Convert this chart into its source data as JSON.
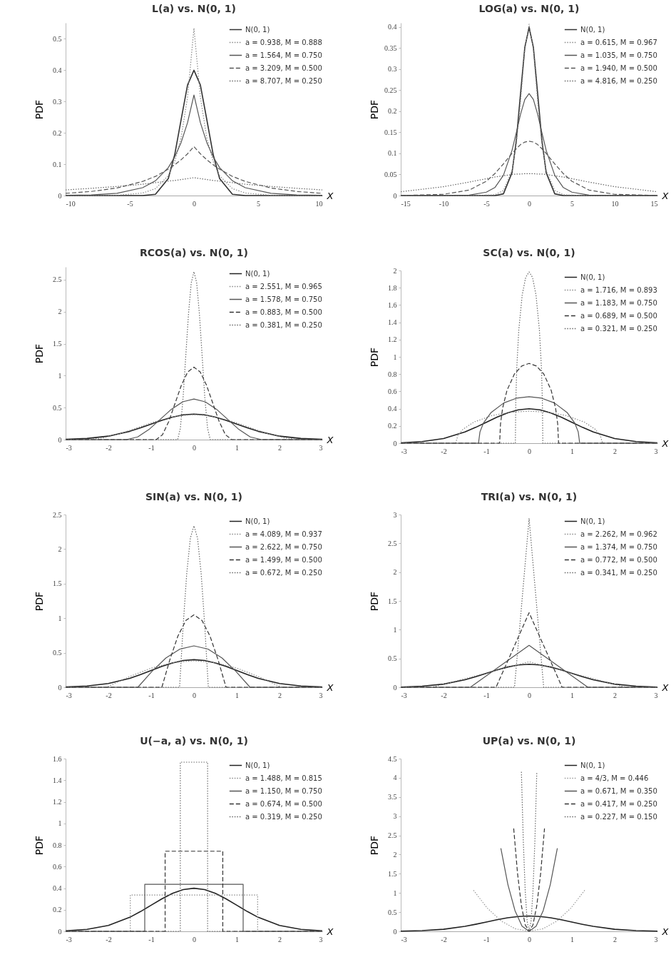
{
  "chart_data": [
    {
      "type": "line",
      "title": "L(a) vs. N(0, 1)",
      "xlabel": "X",
      "ylabel": "PDF",
      "xlim": [
        -10,
        10
      ],
      "ylim": [
        0,
        0.55
      ],
      "xticks": [
        -10,
        -5,
        0,
        5,
        10
      ],
      "yticks": [
        0,
        0.1,
        0.2,
        0.3,
        0.4,
        0.5
      ],
      "legend": "top right",
      "series": [
        {
          "name": "N(0, 1)",
          "color": "#333333",
          "line_style": "solid",
          "x": [
            -10,
            -8,
            -6,
            -4,
            -3,
            -2,
            -1.5,
            -1,
            -0.5,
            0,
            0.5,
            1,
            1.5,
            2,
            3,
            4,
            6,
            8,
            10
          ],
          "values": [
            0,
            0,
            0,
            0,
            0.004,
            0.054,
            0.13,
            0.242,
            0.352,
            0.399,
            0.352,
            0.242,
            0.13,
            0.054,
            0.004,
            0,
            0,
            0,
            0
          ]
        },
        {
          "name": "a = 0.938, M = 0.888",
          "color": "#888888",
          "line_style": "dotted",
          "x": [
            -10,
            -8,
            -6,
            -4,
            -3,
            -2,
            -1.5,
            -1,
            -0.5,
            0,
            0.5,
            1,
            1.5,
            2,
            3,
            4,
            6,
            8,
            10
          ],
          "values": [
            0,
            0,
            0.001,
            0.008,
            0.022,
            0.063,
            0.108,
            0.184,
            0.313,
            0.533,
            0.313,
            0.184,
            0.108,
            0.063,
            0.022,
            0.008,
            0.001,
            0,
            0
          ]
        },
        {
          "name": "a = 1.564, M = 0.750",
          "color": "#555555",
          "line_style": "solid",
          "x": [
            -10,
            -8,
            -6,
            -4,
            -3,
            -2,
            -1.5,
            -1,
            -0.5,
            0,
            0.5,
            1,
            1.5,
            2,
            3,
            4,
            6,
            8,
            10
          ],
          "values": [
            0.001,
            0.002,
            0.007,
            0.025,
            0.047,
            0.089,
            0.123,
            0.169,
            0.232,
            0.32,
            0.232,
            0.169,
            0.123,
            0.089,
            0.047,
            0.025,
            0.007,
            0.002,
            0.001
          ]
        },
        {
          "name": "a = 3.209, M = 0.500",
          "color": "#555555",
          "line_style": "dashed",
          "x": [
            -10,
            -8,
            -6,
            -4,
            -3,
            -2,
            -1.5,
            -1,
            -0.5,
            0,
            0.5,
            1,
            1.5,
            2,
            3,
            4,
            6,
            8,
            10
          ],
          "values": [
            0.007,
            0.013,
            0.024,
            0.045,
            0.061,
            0.084,
            0.098,
            0.114,
            0.133,
            0.156,
            0.133,
            0.114,
            0.098,
            0.084,
            0.061,
            0.045,
            0.024,
            0.013,
            0.007
          ]
        },
        {
          "name": "a = 8.707, M = 0.250",
          "color": "#666666",
          "line_style": "dotted",
          "x": [
            -10,
            -8,
            -6,
            -4,
            -3,
            -2,
            -1.5,
            -1,
            -0.5,
            0,
            0.5,
            1,
            1.5,
            2,
            3,
            4,
            6,
            8,
            10
          ],
          "values": [
            0.018,
            0.023,
            0.029,
            0.036,
            0.041,
            0.046,
            0.048,
            0.051,
            0.054,
            0.057,
            0.054,
            0.051,
            0.048,
            0.046,
            0.041,
            0.036,
            0.029,
            0.023,
            0.018
          ]
        }
      ]
    },
    {
      "type": "line",
      "title": "LOG(a) vs. N(0, 1)",
      "xlabel": "X",
      "ylabel": "PDF",
      "xlim": [
        -15,
        15
      ],
      "ylim": [
        0,
        0.41
      ],
      "xticks": [
        -15,
        -10,
        -5,
        0,
        5,
        10,
        15
      ],
      "yticks": [
        0,
        0.05,
        0.1,
        0.15,
        0.2,
        0.25,
        0.3,
        0.35,
        0.4
      ],
      "legend": "top right",
      "series": [
        {
          "name": "N(0, 1)",
          "color": "#333333",
          "line_style": "solid",
          "x": [
            -15,
            -10,
            -7,
            -5,
            -4,
            -3,
            -2,
            -1.5,
            -1,
            -0.5,
            0,
            0.5,
            1,
            1.5,
            2,
            3,
            4,
            5,
            7,
            10,
            15
          ],
          "values": [
            0,
            0,
            0,
            0,
            0,
            0.004,
            0.054,
            0.13,
            0.242,
            0.352,
            0.399,
            0.352,
            0.242,
            0.13,
            0.054,
            0.004,
            0,
            0,
            0,
            0,
            0
          ]
        },
        {
          "name": "a = 0.615, M = 0.967",
          "color": "#888888",
          "line_style": "dotted",
          "x": [
            -15,
            -10,
            -7,
            -5,
            -4,
            -3,
            -2,
            -1.5,
            -1,
            -0.5,
            0,
            0.5,
            1,
            1.5,
            2,
            3,
            4,
            5,
            7,
            10,
            15
          ],
          "values": [
            0,
            0,
            0,
            0.001,
            0.002,
            0.012,
            0.059,
            0.12,
            0.223,
            0.346,
            0.407,
            0.346,
            0.223,
            0.12,
            0.059,
            0.012,
            0.002,
            0.001,
            0,
            0,
            0
          ]
        },
        {
          "name": "a = 1.035, M = 0.750",
          "color": "#555555",
          "line_style": "solid",
          "x": [
            -15,
            -10,
            -7,
            -5,
            -4,
            -3,
            -2,
            -1.5,
            -1,
            -0.5,
            0,
            0.5,
            1,
            1.5,
            2,
            3,
            4,
            5,
            7,
            10,
            15
          ],
          "values": [
            0,
            0,
            0.001,
            0.008,
            0.019,
            0.048,
            0.107,
            0.149,
            0.193,
            0.228,
            0.242,
            0.228,
            0.193,
            0.149,
            0.107,
            0.048,
            0.019,
            0.008,
            0.001,
            0,
            0
          ]
        },
        {
          "name": "a = 1.940, M = 0.500",
          "color": "#555555",
          "line_style": "dashed",
          "x": [
            -15,
            -10,
            -7,
            -5,
            -4,
            -3,
            -2,
            -1.5,
            -1,
            -0.5,
            0,
            0.5,
            1,
            1.5,
            2,
            3,
            4,
            5,
            7,
            10,
            15
          ],
          "values": [
            0,
            0.003,
            0.013,
            0.034,
            0.052,
            0.075,
            0.1,
            0.111,
            0.121,
            0.127,
            0.129,
            0.127,
            0.121,
            0.111,
            0.1,
            0.075,
            0.052,
            0.034,
            0.013,
            0.003,
            0
          ]
        },
        {
          "name": "a = 4.816, M = 0.250",
          "color": "#666666",
          "line_style": "dotted",
          "x": [
            -15,
            -10,
            -7,
            -5,
            -4,
            -3,
            -2,
            -1.5,
            -1,
            -0.5,
            0,
            0.5,
            1,
            1.5,
            2,
            3,
            4,
            5,
            7,
            10,
            15
          ],
          "values": [
            0.009,
            0.021,
            0.032,
            0.04,
            0.044,
            0.047,
            0.05,
            0.051,
            0.051,
            0.052,
            0.052,
            0.052,
            0.051,
            0.051,
            0.05,
            0.047,
            0.044,
            0.04,
            0.032,
            0.021,
            0.009
          ]
        }
      ]
    },
    {
      "type": "line",
      "title": "RCOS(a) vs. N(0, 1)",
      "xlabel": "X",
      "ylabel": "PDF",
      "xlim": [
        -3,
        3
      ],
      "ylim": [
        0,
        2.7
      ],
      "xticks": [
        -3,
        -2,
        -1,
        0,
        1,
        2,
        3
      ],
      "yticks": [
        0,
        0.5,
        1,
        1.5,
        2,
        2.5
      ],
      "legend": "top right",
      "series": [
        {
          "name": "N(0, 1)",
          "color": "#222222",
          "line_style": "solid",
          "x": [
            -3,
            -2.5,
            -2,
            -1.5,
            -1.25,
            -1,
            -0.75,
            -0.5,
            -0.25,
            0,
            0.25,
            0.5,
            0.75,
            1,
            1.25,
            1.5,
            2,
            2.5,
            3
          ],
          "values": [
            0.004,
            0.018,
            0.054,
            0.13,
            0.183,
            0.242,
            0.301,
            0.352,
            0.387,
            0.399,
            0.387,
            0.352,
            0.301,
            0.242,
            0.183,
            0.13,
            0.054,
            0.018,
            0.004
          ]
        },
        {
          "name": "a = 2.551, M = 0.965",
          "color": "#888888",
          "line_style": "dotted",
          "x": [
            -3,
            -2.551,
            -2.126,
            -1.701,
            -1.276,
            -0.85,
            -0.425,
            0,
            0.425,
            0.85,
            1.276,
            1.701,
            2.126,
            2.551,
            3
          ],
          "values": [
            0,
            0,
            0.026,
            0.098,
            0.196,
            0.294,
            0.366,
            0.392,
            0.366,
            0.294,
            0.196,
            0.098,
            0.026,
            0,
            0
          ]
        },
        {
          "name": "a = 1.578, M = 0.750",
          "color": "#555555",
          "line_style": "solid",
          "x": [
            -3,
            -1.578,
            -1.315,
            -1.052,
            -0.789,
            -0.526,
            -0.263,
            0,
            0.263,
            0.526,
            0.789,
            1.052,
            1.315,
            1.578,
            3
          ],
          "values": [
            0,
            0,
            0.042,
            0.158,
            0.317,
            0.475,
            0.591,
            0.634,
            0.591,
            0.475,
            0.317,
            0.158,
            0.042,
            0,
            0
          ]
        },
        {
          "name": "a = 0.883, M = 0.500",
          "color": "#333333",
          "line_style": "dashed",
          "x": [
            -3,
            -0.883,
            -0.736,
            -0.589,
            -0.442,
            -0.294,
            -0.147,
            0,
            0.147,
            0.294,
            0.442,
            0.589,
            0.736,
            0.883,
            3
          ],
          "values": [
            0,
            0,
            0.076,
            0.283,
            0.566,
            0.85,
            1.057,
            1.133,
            1.057,
            0.85,
            0.566,
            0.283,
            0.076,
            0,
            0
          ]
        },
        {
          "name": "a = 0.381, M = 0.250",
          "color": "#666666",
          "line_style": "dotted",
          "x": [
            -3,
            -0.381,
            -0.318,
            -0.254,
            -0.191,
            -0.127,
            -0.064,
            0,
            0.064,
            0.127,
            0.191,
            0.254,
            0.318,
            0.381,
            3
          ],
          "values": [
            0,
            0,
            0.176,
            0.656,
            1.312,
            1.969,
            2.449,
            2.625,
            2.449,
            1.969,
            1.312,
            0.656,
            0.176,
            0,
            0
          ]
        }
      ]
    },
    {
      "type": "line",
      "title": "SC(a) vs. N(0, 1)",
      "xlabel": "X",
      "ylabel": "PDF",
      "xlim": [
        -3,
        3
      ],
      "ylim": [
        0,
        2
      ],
      "xticks": [
        -3,
        -2,
        -1,
        0,
        1,
        2,
        3
      ],
      "yticks": [
        0,
        0.2,
        0.4,
        0.6,
        0.8,
        1,
        1.2,
        1.4,
        1.6,
        1.8,
        2
      ],
      "legend": "top right",
      "series": [
        {
          "name": "N(0, 1)",
          "color": "#222222",
          "line_style": "solid",
          "x": [
            -3,
            -2.5,
            -2,
            -1.5,
            -1.25,
            -1,
            -0.75,
            -0.5,
            -0.25,
            0,
            0.25,
            0.5,
            0.75,
            1,
            1.25,
            1.5,
            2,
            2.5,
            3
          ],
          "values": [
            0.004,
            0.018,
            0.054,
            0.13,
            0.183,
            0.242,
            0.301,
            0.352,
            0.387,
            0.399,
            0.387,
            0.352,
            0.301,
            0.242,
            0.183,
            0.13,
            0.054,
            0.018,
            0.004
          ]
        },
        {
          "name": "a = 1.716, M = 0.893",
          "color": "#888888",
          "line_style": "dotted",
          "x": [
            -3,
            -1.716,
            -1.665,
            -1.544,
            -1.287,
            -0.858,
            -0.429,
            0,
            0.429,
            0.858,
            1.287,
            1.544,
            1.665,
            1.716,
            3
          ],
          "values": [
            0,
            0,
            0.09,
            0.162,
            0.245,
            0.321,
            0.359,
            0.371,
            0.359,
            0.321,
            0.245,
            0.162,
            0.09,
            0,
            0
          ]
        },
        {
          "name": "a = 1.183, M = 0.750",
          "color": "#555555",
          "line_style": "solid",
          "x": [
            -3,
            -1.183,
            -1.148,
            -1.065,
            -0.887,
            -0.592,
            -0.296,
            0,
            0.296,
            0.592,
            0.887,
            1.065,
            1.148,
            1.183,
            3
          ],
          "values": [
            0,
            0,
            0.131,
            0.235,
            0.356,
            0.466,
            0.521,
            0.538,
            0.521,
            0.466,
            0.356,
            0.235,
            0.131,
            0,
            0
          ]
        },
        {
          "name": "a = 0.689, M = 0.500",
          "color": "#333333",
          "line_style": "dashed",
          "x": [
            -3,
            -0.689,
            -0.668,
            -0.62,
            -0.517,
            -0.345,
            -0.172,
            0,
            0.172,
            0.345,
            0.517,
            0.62,
            0.668,
            0.689,
            3
          ],
          "values": [
            0,
            0,
            0.225,
            0.403,
            0.611,
            0.8,
            0.894,
            0.924,
            0.894,
            0.8,
            0.611,
            0.403,
            0.225,
            0,
            0
          ]
        },
        {
          "name": "a = 0.321, M = 0.250",
          "color": "#666666",
          "line_style": "dotted",
          "x": [
            -3,
            -0.321,
            -0.311,
            -0.289,
            -0.241,
            -0.161,
            -0.08,
            0,
            0.08,
            0.161,
            0.241,
            0.289,
            0.311,
            0.321,
            3
          ],
          "values": [
            0,
            0,
            0.482,
            0.865,
            1.311,
            1.717,
            1.92,
            1.983,
            1.92,
            1.717,
            1.311,
            0.865,
            0.482,
            0,
            0
          ]
        }
      ]
    },
    {
      "type": "line",
      "title": "SIN(a) vs. N(0, 1)",
      "xlabel": "X",
      "ylabel": "PDF",
      "xlim": [
        -3,
        3
      ],
      "ylim": [
        0,
        2.5
      ],
      "xticks": [
        -3,
        -2,
        -1,
        0,
        1,
        2,
        3
      ],
      "yticks": [
        0,
        0.5,
        1,
        1.5,
        2,
        2.5
      ],
      "legend": "top right",
      "series": [
        {
          "name": "N(0, 1)",
          "color": "#222222",
          "line_style": "solid",
          "x": [
            -3,
            -2.5,
            -2,
            -1.5,
            -1.25,
            -1,
            -0.75,
            -0.5,
            -0.25,
            0,
            0.25,
            0.5,
            0.75,
            1,
            1.25,
            1.5,
            2,
            2.5,
            3
          ],
          "values": [
            0.004,
            0.018,
            0.054,
            0.13,
            0.183,
            0.242,
            0.301,
            0.352,
            0.387,
            0.399,
            0.387,
            0.352,
            0.301,
            0.242,
            0.183,
            0.13,
            0.054,
            0.018,
            0.004
          ]
        },
        {
          "name": "a = 4.089, M = 0.937",
          "color": "#888888",
          "line_style": "dotted",
          "x": [
            -3,
            -2.045,
            -1.533,
            -1.022,
            -0.511,
            0,
            0.511,
            1.022,
            1.533,
            2.045,
            3
          ],
          "values": [
            0,
            0,
            0.147,
            0.272,
            0.355,
            0.384,
            0.355,
            0.272,
            0.147,
            0,
            0
          ]
        },
        {
          "name": "a = 2.622, M = 0.750",
          "color": "#555555",
          "line_style": "solid",
          "x": [
            -3,
            -1.311,
            -0.983,
            -0.656,
            -0.328,
            0,
            0.328,
            0.656,
            0.983,
            1.311,
            3
          ],
          "values": [
            0,
            0,
            0.229,
            0.424,
            0.553,
            0.599,
            0.553,
            0.424,
            0.229,
            0,
            0
          ]
        },
        {
          "name": "a = 1.499, M = 0.500",
          "color": "#333333",
          "line_style": "dashed",
          "x": [
            -3,
            -0.75,
            -0.562,
            -0.375,
            -0.187,
            0,
            0.187,
            0.375,
            0.562,
            0.75,
            3
          ],
          "values": [
            0,
            0,
            0.401,
            0.741,
            0.968,
            1.048,
            0.968,
            0.741,
            0.401,
            0,
            0
          ]
        },
        {
          "name": "a = 0.672, M = 0.250",
          "color": "#666666",
          "line_style": "dotted",
          "x": [
            -3,
            -0.336,
            -0.252,
            -0.168,
            -0.084,
            0,
            0.084,
            0.168,
            0.252,
            0.336,
            3
          ],
          "values": [
            0,
            0,
            0.895,
            1.652,
            2.159,
            2.337,
            2.159,
            1.652,
            0.895,
            0,
            0
          ]
        }
      ]
    },
    {
      "type": "line",
      "title": "TRI(a) vs. N(0, 1)",
      "xlabel": "X",
      "ylabel": "PDF",
      "xlim": [
        -3,
        3
      ],
      "ylim": [
        0,
        3
      ],
      "xticks": [
        -3,
        -2,
        -1,
        0,
        1,
        2,
        3
      ],
      "yticks": [
        0,
        0.5,
        1,
        1.5,
        2,
        2.5,
        3
      ],
      "legend": "top right",
      "series": [
        {
          "name": "N(0, 1)",
          "color": "#222222",
          "line_style": "solid",
          "x": [
            -3,
            -2.5,
            -2,
            -1.5,
            -1.25,
            -1,
            -0.75,
            -0.5,
            -0.25,
            0,
            0.25,
            0.5,
            0.75,
            1,
            1.25,
            1.5,
            2,
            2.5,
            3
          ],
          "values": [
            0.004,
            0.018,
            0.054,
            0.13,
            0.183,
            0.242,
            0.301,
            0.352,
            0.387,
            0.399,
            0.387,
            0.352,
            0.301,
            0.242,
            0.183,
            0.13,
            0.054,
            0.018,
            0.004
          ]
        },
        {
          "name": "a = 2.262, M = 0.962",
          "color": "#888888",
          "line_style": "dotted",
          "x": [
            -3,
            -2.262,
            0,
            2.262,
            3
          ],
          "values": [
            0,
            0,
            0.442,
            0,
            0
          ]
        },
        {
          "name": "a = 1.374, M = 0.750",
          "color": "#555555",
          "line_style": "solid",
          "x": [
            -3,
            -1.374,
            0,
            1.374,
            3
          ],
          "values": [
            0,
            0,
            0.728,
            0,
            0
          ]
        },
        {
          "name": "a = 0.772, M = 0.500",
          "color": "#333333",
          "line_style": "dashed",
          "x": [
            -3,
            -0.772,
            0,
            0.772,
            3
          ],
          "values": [
            0,
            0,
            1.295,
            0,
            0
          ]
        },
        {
          "name": "a = 0.341, M = 0.250",
          "color": "#666666",
          "line_style": "dotted",
          "x": [
            -3,
            -0.341,
            0,
            0.341,
            3
          ],
          "values": [
            0,
            0,
            2.933,
            0,
            0
          ]
        }
      ]
    },
    {
      "type": "line",
      "title": "U(−a, a) vs. N(0, 1)",
      "xlabel": "X",
      "ylabel": "PDF",
      "xlim": [
        -3,
        3
      ],
      "ylim": [
        0,
        1.6
      ],
      "xticks": [
        -3,
        -2,
        -1,
        0,
        1,
        2,
        3
      ],
      "yticks": [
        0,
        0.2,
        0.4,
        0.6,
        0.8,
        1,
        1.2,
        1.4,
        1.6
      ],
      "legend": "top right",
      "series": [
        {
          "name": "N(0, 1)",
          "color": "#222222",
          "line_style": "solid",
          "x": [
            -3,
            -2.5,
            -2,
            -1.5,
            -1.25,
            -1,
            -0.75,
            -0.5,
            -0.25,
            0,
            0.25,
            0.5,
            0.75,
            1,
            1.25,
            1.5,
            2,
            2.5,
            3
          ],
          "values": [
            0.004,
            0.018,
            0.054,
            0.13,
            0.183,
            0.242,
            0.301,
            0.352,
            0.387,
            0.399,
            0.387,
            0.352,
            0.301,
            0.242,
            0.183,
            0.13,
            0.054,
            0.018,
            0.004
          ]
        },
        {
          "name": "a = 1.488, M = 0.815",
          "color": "#888888",
          "line_style": "dotted",
          "x": [
            -3,
            -1.488,
            -1.488,
            1.488,
            1.488,
            3
          ],
          "values": [
            0,
            0,
            0.336,
            0.336,
            0,
            0
          ]
        },
        {
          "name": "a = 1.150, M = 0.750",
          "color": "#555555",
          "line_style": "solid",
          "x": [
            -3,
            -1.15,
            -1.15,
            1.15,
            1.15,
            3
          ],
          "values": [
            0,
            0,
            0.435,
            0.435,
            0,
            0
          ]
        },
        {
          "name": "a = 0.674, M = 0.500",
          "color": "#333333",
          "line_style": "dashed",
          "x": [
            -3,
            -0.674,
            -0.674,
            0.674,
            0.674,
            3
          ],
          "values": [
            0,
            0,
            0.742,
            0.742,
            0,
            0
          ]
        },
        {
          "name": "a = 0.319, M = 0.250",
          "color": "#666666",
          "line_style": "dotted",
          "x": [
            -3,
            -0.319,
            -0.319,
            0.319,
            0.319,
            3
          ],
          "values": [
            0,
            0,
            1.567,
            1.567,
            0,
            0
          ]
        }
      ]
    },
    {
      "type": "line",
      "title": "UP(a) vs. N(0, 1)",
      "xlabel": "X",
      "ylabel": "PDF",
      "xlim": [
        -3,
        3
      ],
      "ylim": [
        0,
        4.5
      ],
      "xticks": [
        -3,
        -2,
        -1,
        0,
        1,
        2,
        3
      ],
      "yticks": [
        0,
        0.5,
        1,
        1.5,
        2,
        2.5,
        3,
        3.5,
        4,
        4.5
      ],
      "legend": "top right",
      "series": [
        {
          "name": "N(0, 1)",
          "color": "#222222",
          "line_style": "solid",
          "x": [
            -3,
            -2.5,
            -2,
            -1.5,
            -1.25,
            -1,
            -0.75,
            -0.5,
            -0.25,
            0,
            0.25,
            0.5,
            0.75,
            1,
            1.25,
            1.5,
            2,
            2.5,
            3
          ],
          "values": [
            0.004,
            0.018,
            0.054,
            0.13,
            0.183,
            0.242,
            0.301,
            0.352,
            0.387,
            0.399,
            0.387,
            0.352,
            0.301,
            0.242,
            0.183,
            0.13,
            0.054,
            0.018,
            0.004
          ]
        },
        {
          "name": "a = 4/3, M = 0.446",
          "color": "#999999",
          "line_style": "dotted",
          "x": [
            -1.3,
            -0.975,
            -0.65,
            -0.325,
            0,
            0.325,
            0.65,
            0.975,
            1.3
          ],
          "values": [
            1.07,
            0.602,
            0.267,
            0.067,
            0,
            0.067,
            0.267,
            0.602,
            1.07
          ]
        },
        {
          "name": "a = 0.671, M = 0.350",
          "color": "#555555",
          "line_style": "solid",
          "x": [
            -0.66,
            -0.495,
            -0.33,
            -0.165,
            0,
            0.165,
            0.33,
            0.495,
            0.66
          ],
          "values": [
            2.163,
            1.217,
            0.541,
            0.135,
            0,
            0.135,
            0.541,
            1.217,
            2.163
          ]
        },
        {
          "name": "a = 0.417, M = 0.250",
          "color": "#333333",
          "line_style": "dashed",
          "x": [
            -0.36,
            -0.27,
            -0.18,
            -0.09,
            0,
            0.09,
            0.18,
            0.27,
            0.36
          ],
          "values": [
            2.68,
            1.508,
            0.67,
            0.168,
            0,
            0.168,
            0.67,
            1.508,
            2.68
          ]
        },
        {
          "name": "a = 0.227, M = 0.150",
          "color": "#666666",
          "line_style": "dotted",
          "x": [
            -0.18,
            -0.135,
            -0.09,
            -0.045,
            0,
            0.045,
            0.09,
            0.135,
            0.18
          ],
          "values": [
            4.155,
            2.337,
            1.039,
            0.26,
            0,
            0.26,
            1.039,
            2.337,
            4.155
          ]
        }
      ]
    }
  ]
}
